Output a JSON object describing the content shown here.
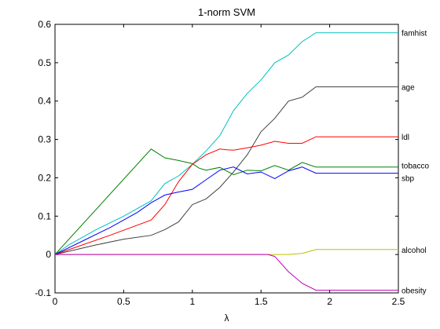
{
  "chart_data": {
    "type": "line",
    "title": "1-norm SVM",
    "xlabel": "λ",
    "ylabel": "",
    "xlim": [
      0,
      2.5
    ],
    "ylim": [
      -0.1,
      0.6
    ],
    "xticks": [
      "0",
      "0.5",
      "1",
      "1.5",
      "2",
      "2.5"
    ],
    "xtick_values": [
      0,
      0.5,
      1,
      1.5,
      2,
      2.5
    ],
    "yticks": [
      "-0.1",
      "0",
      "0.1",
      "0.2",
      "0.3",
      "0.4",
      "0.5",
      "0.6"
    ],
    "ytick_values": [
      -0.1,
      0,
      0.1,
      0.2,
      0.3,
      0.4,
      0.5,
      0.6
    ],
    "grid": false,
    "legend": "labels at right edge of each series",
    "series": [
      {
        "name": "famhist",
        "color": "#00bfbf",
        "points": [
          [
            0,
            0
          ],
          [
            0.1,
            0.025
          ],
          [
            0.3,
            0.065
          ],
          [
            0.5,
            0.1
          ],
          [
            0.7,
            0.14
          ],
          [
            0.8,
            0.185
          ],
          [
            0.9,
            0.205
          ],
          [
            1.0,
            0.235
          ],
          [
            1.1,
            0.27
          ],
          [
            1.2,
            0.31
          ],
          [
            1.3,
            0.375
          ],
          [
            1.4,
            0.42
          ],
          [
            1.5,
            0.455
          ],
          [
            1.6,
            0.5
          ],
          [
            1.7,
            0.52
          ],
          [
            1.8,
            0.555
          ],
          [
            1.9,
            0.578
          ],
          [
            2.0,
            0.578
          ],
          [
            2.5,
            0.578
          ]
        ]
      },
      {
        "name": "age",
        "color": "#404040",
        "points": [
          [
            0,
            0
          ],
          [
            0.3,
            0.025
          ],
          [
            0.5,
            0.04
          ],
          [
            0.7,
            0.05
          ],
          [
            0.8,
            0.065
          ],
          [
            0.9,
            0.085
          ],
          [
            1.0,
            0.13
          ],
          [
            1.1,
            0.145
          ],
          [
            1.2,
            0.175
          ],
          [
            1.3,
            0.215
          ],
          [
            1.4,
            0.26
          ],
          [
            1.5,
            0.32
          ],
          [
            1.6,
            0.355
          ],
          [
            1.7,
            0.4
          ],
          [
            1.8,
            0.41
          ],
          [
            1.9,
            0.437
          ],
          [
            2.0,
            0.437
          ],
          [
            2.5,
            0.437
          ]
        ]
      },
      {
        "name": "ldl",
        "color": "#ff0000",
        "points": [
          [
            0,
            0
          ],
          [
            0.2,
            0.025
          ],
          [
            0.4,
            0.05
          ],
          [
            0.7,
            0.09
          ],
          [
            0.8,
            0.13
          ],
          [
            0.9,
            0.19
          ],
          [
            1.0,
            0.235
          ],
          [
            1.1,
            0.26
          ],
          [
            1.2,
            0.275
          ],
          [
            1.25,
            0.273
          ],
          [
            1.3,
            0.272
          ],
          [
            1.4,
            0.278
          ],
          [
            1.5,
            0.285
          ],
          [
            1.6,
            0.295
          ],
          [
            1.7,
            0.29
          ],
          [
            1.8,
            0.29
          ],
          [
            1.9,
            0.307
          ],
          [
            2.0,
            0.307
          ],
          [
            2.5,
            0.307
          ]
        ]
      },
      {
        "name": "tobacco",
        "color": "#008000",
        "points": [
          [
            0,
            0
          ],
          [
            0.7,
            0.275
          ],
          [
            0.8,
            0.252
          ],
          [
            0.9,
            0.245
          ],
          [
            1.0,
            0.237
          ],
          [
            1.05,
            0.225
          ],
          [
            1.1,
            0.22
          ],
          [
            1.2,
            0.227
          ],
          [
            1.3,
            0.208
          ],
          [
            1.4,
            0.22
          ],
          [
            1.5,
            0.218
          ],
          [
            1.6,
            0.232
          ],
          [
            1.7,
            0.22
          ],
          [
            1.8,
            0.24
          ],
          [
            1.9,
            0.228
          ],
          [
            2.0,
            0.228
          ],
          [
            2.5,
            0.228
          ]
        ]
      },
      {
        "name": "sbp",
        "color": "#0000ff",
        "points": [
          [
            0,
            0
          ],
          [
            0.2,
            0.035
          ],
          [
            0.4,
            0.07
          ],
          [
            0.6,
            0.11
          ],
          [
            0.7,
            0.135
          ],
          [
            0.8,
            0.155
          ],
          [
            0.9,
            0.163
          ],
          [
            1.0,
            0.17
          ],
          [
            1.1,
            0.195
          ],
          [
            1.2,
            0.22
          ],
          [
            1.3,
            0.228
          ],
          [
            1.4,
            0.21
          ],
          [
            1.5,
            0.215
          ],
          [
            1.6,
            0.198
          ],
          [
            1.7,
            0.218
          ],
          [
            1.8,
            0.228
          ],
          [
            1.9,
            0.212
          ],
          [
            2.0,
            0.212
          ],
          [
            2.5,
            0.212
          ]
        ]
      },
      {
        "name": "alcohol",
        "color": "#bfbf00",
        "points": [
          [
            0,
            0
          ],
          [
            1.5,
            0
          ],
          [
            1.6,
            0
          ],
          [
            1.7,
            0
          ],
          [
            1.8,
            0.003
          ],
          [
            1.9,
            0.013
          ],
          [
            2.0,
            0.013
          ],
          [
            2.5,
            0.013
          ]
        ]
      },
      {
        "name": "obesity",
        "color": "#bf00bf",
        "points": [
          [
            0,
            0
          ],
          [
            1.5,
            0
          ],
          [
            1.55,
            0
          ],
          [
            1.6,
            -0.005
          ],
          [
            1.7,
            -0.045
          ],
          [
            1.8,
            -0.075
          ],
          [
            1.9,
            -0.093
          ],
          [
            2.0,
            -0.093
          ],
          [
            2.5,
            -0.093
          ]
        ]
      }
    ]
  }
}
